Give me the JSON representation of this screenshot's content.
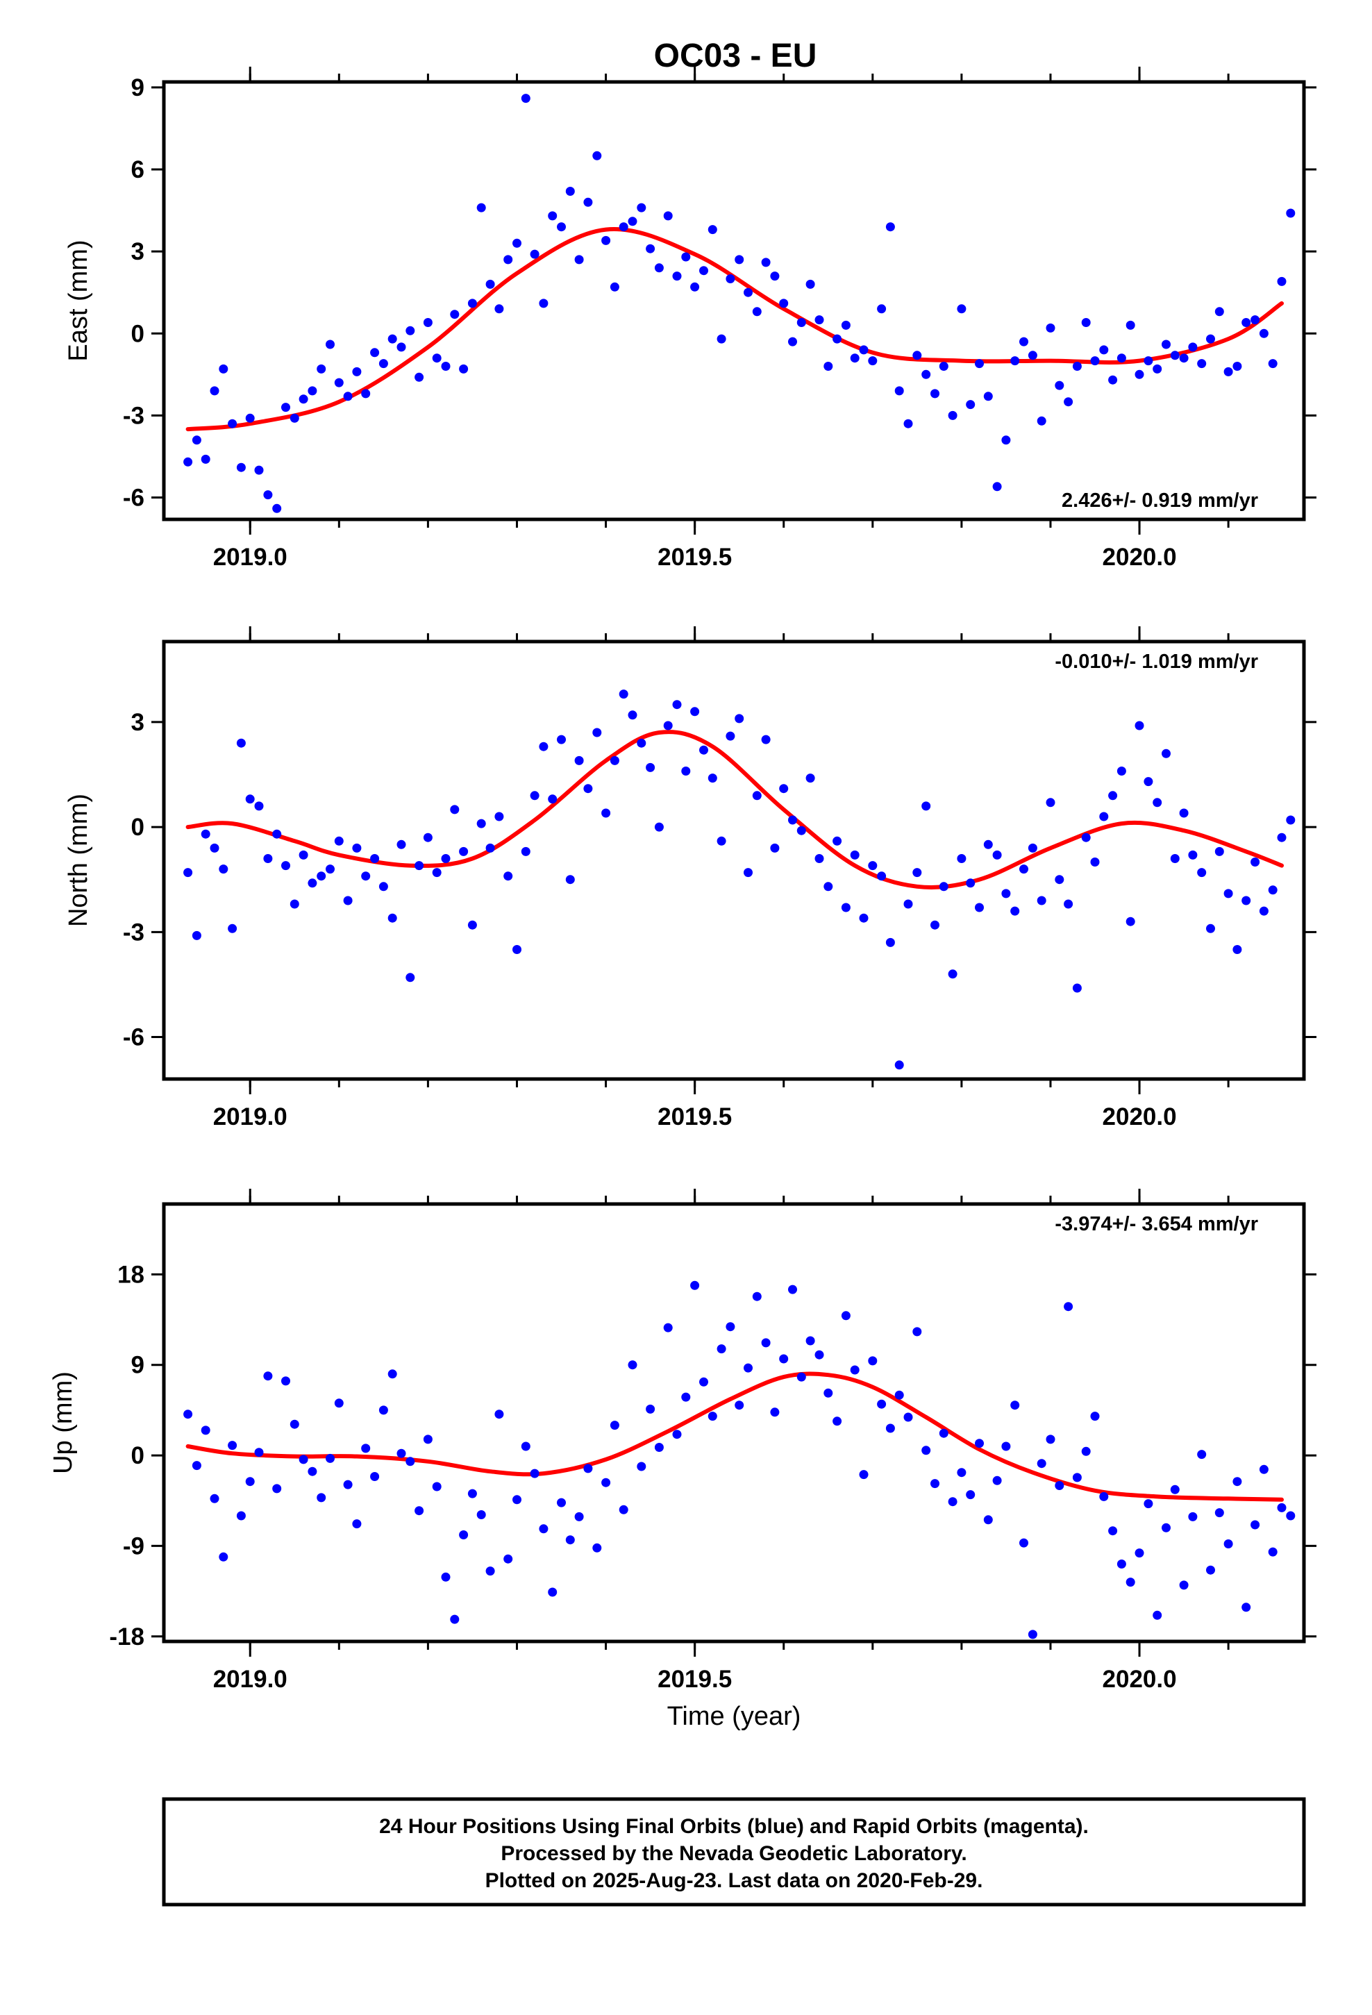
{
  "title": "OC03 - EU",
  "xlabel": "Time (year)",
  "footer": {
    "line1": "24 Hour Positions Using Final Orbits (blue) and Rapid Orbits (magenta).",
    "line2": "Processed by the Nevada Geodetic Laboratory.",
    "line3": "Plotted on 2025-Aug-23. Last data on 2020-Feb-29."
  },
  "colors": {
    "final_orbits": "#0000ff",
    "fit": "#ff0000",
    "frame": "#000000"
  },
  "chart_data": [
    {
      "type": "scatter",
      "component": "East",
      "ylabel": "East (mm)",
      "rate": "2.426+/- 0.919 mm/yr",
      "xlim": [
        2018.903,
        2020.185
      ],
      "ylim": [
        -6.8,
        9.2
      ],
      "xticks": [
        2019.0,
        2019.5,
        2020.0
      ],
      "xtick_labels": [
        "2019.0",
        "2019.5",
        "2020.0"
      ],
      "yticks": [
        -6,
        -3,
        0,
        3,
        6,
        9
      ],
      "ytick_labels": [
        "-6",
        "-3",
        "0",
        "3",
        "6",
        "9"
      ],
      "fit": {
        "x": [
          2018.93,
          2019.0,
          2019.1,
          2019.2,
          2019.3,
          2019.4,
          2019.5,
          2019.6,
          2019.7,
          2019.8,
          2019.9,
          2020.0,
          2020.1,
          2020.16
        ],
        "y": [
          -3.5,
          -3.3,
          -2.5,
          -0.5,
          2.2,
          3.8,
          2.9,
          0.9,
          -0.7,
          -1.0,
          -1.0,
          -1.0,
          -0.2,
          1.1
        ]
      },
      "points": {
        "x": [
          2018.93,
          2018.94,
          2018.95,
          2018.96,
          2018.97,
          2018.98,
          2018.99,
          2019.0,
          2019.01,
          2019.02,
          2019.03,
          2019.04,
          2019.05,
          2019.06,
          2019.07,
          2019.08,
          2019.09,
          2019.1,
          2019.11,
          2019.12,
          2019.13,
          2019.14,
          2019.15,
          2019.16,
          2019.17,
          2019.18,
          2019.19,
          2019.2,
          2019.21,
          2019.22,
          2019.23,
          2019.24,
          2019.25,
          2019.26,
          2019.27,
          2019.28,
          2019.29,
          2019.3,
          2019.31,
          2019.32,
          2019.33,
          2019.34,
          2019.35,
          2019.36,
          2019.37,
          2019.38,
          2019.39,
          2019.4,
          2019.41,
          2019.42,
          2019.43,
          2019.44,
          2019.45,
          2019.46,
          2019.47,
          2019.48,
          2019.49,
          2019.5,
          2019.51,
          2019.52,
          2019.53,
          2019.54,
          2019.55,
          2019.56,
          2019.57,
          2019.58,
          2019.59,
          2019.6,
          2019.61,
          2019.62,
          2019.63,
          2019.64,
          2019.65,
          2019.66,
          2019.67,
          2019.68,
          2019.69,
          2019.7,
          2019.71,
          2019.72,
          2019.73,
          2019.74,
          2019.75,
          2019.76,
          2019.77,
          2019.78,
          2019.79,
          2019.8,
          2019.81,
          2019.82,
          2019.83,
          2019.84,
          2019.85,
          2019.86,
          2019.87,
          2019.88,
          2019.89,
          2019.9,
          2019.91,
          2019.92,
          2019.93,
          2019.94,
          2019.95,
          2019.96,
          2019.97,
          2019.98,
          2019.99,
          2020.0,
          2020.01,
          2020.02,
          2020.03,
          2020.04,
          2020.05,
          2020.06,
          2020.07,
          2020.08,
          2020.09,
          2020.1,
          2020.11,
          2020.12,
          2020.13,
          2020.14,
          2020.15,
          2020.16,
          2020.17
        ],
        "y": [
          -4.7,
          -3.9,
          -4.6,
          -2.1,
          -1.3,
          -3.3,
          -4.9,
          -3.1,
          -5.0,
          -5.9,
          -6.4,
          -2.7,
          -3.1,
          -2.4,
          -2.1,
          -1.3,
          -0.4,
          -1.8,
          -2.3,
          -1.4,
          -2.2,
          -0.7,
          -1.1,
          -0.2,
          -0.5,
          0.1,
          -1.6,
          0.4,
          -0.9,
          -1.2,
          0.7,
          -1.3,
          1.1,
          4.6,
          1.8,
          0.9,
          2.7,
          3.3,
          8.6,
          2.9,
          1.1,
          4.3,
          3.9,
          5.2,
          2.7,
          4.8,
          6.5,
          3.4,
          1.7,
          3.9,
          4.1,
          4.6,
          3.1,
          2.4,
          4.3,
          2.1,
          2.8,
          1.7,
          2.3,
          3.8,
          -0.2,
          2.0,
          2.7,
          1.5,
          0.8,
          2.6,
          2.1,
          1.1,
          -0.3,
          0.4,
          1.8,
          0.5,
          -1.2,
          -0.2,
          0.3,
          -0.9,
          -0.6,
          -1.0,
          0.9,
          3.9,
          -2.1,
          -3.3,
          -0.8,
          -1.5,
          -2.2,
          -1.2,
          -3.0,
          0.9,
          -2.6,
          -1.1,
          -2.3,
          -5.6,
          -3.9,
          -1.0,
          -0.3,
          -0.8,
          -3.2,
          0.2,
          -1.9,
          -2.5,
          -1.2,
          0.4,
          -1.0,
          -0.6,
          -1.7,
          -0.9,
          0.3,
          -1.5,
          -1.0,
          -1.3,
          -0.4,
          -0.8,
          -0.9,
          -0.5,
          -1.1,
          -0.2,
          0.8,
          -1.4,
          -1.2,
          0.4,
          0.5,
          0.0,
          -1.1,
          1.9,
          4.4
        ]
      }
    },
    {
      "type": "scatter",
      "component": "North",
      "ylabel": "North (mm)",
      "rate": "-0.010+/- 1.019 mm/yr",
      "xlim": [
        2018.903,
        2020.185
      ],
      "ylim": [
        -7.2,
        5.3
      ],
      "xticks": [
        2019.0,
        2019.5,
        2020.0
      ],
      "xtick_labels": [
        "2019.0",
        "2019.5",
        "2020.0"
      ],
      "yticks": [
        -6,
        -3,
        0,
        3
      ],
      "ytick_labels": [
        "-6",
        "-3",
        "0",
        "3"
      ],
      "fit": {
        "x": [
          2018.93,
          2018.98,
          2019.05,
          2019.1,
          2019.18,
          2019.25,
          2019.32,
          2019.4,
          2019.46,
          2019.52,
          2019.6,
          2019.68,
          2019.75,
          2019.82,
          2019.9,
          2019.98,
          2020.05,
          2020.12,
          2020.16
        ],
        "y": [
          0.0,
          0.1,
          -0.4,
          -0.8,
          -1.1,
          -0.9,
          0.2,
          1.9,
          2.7,
          2.3,
          0.5,
          -1.1,
          -1.7,
          -1.5,
          -0.6,
          0.1,
          -0.1,
          -0.7,
          -1.1
        ]
      },
      "points": {
        "x": [
          2018.93,
          2018.94,
          2018.95,
          2018.96,
          2018.97,
          2018.98,
          2018.99,
          2019.0,
          2019.01,
          2019.02,
          2019.03,
          2019.04,
          2019.05,
          2019.06,
          2019.07,
          2019.08,
          2019.09,
          2019.1,
          2019.11,
          2019.12,
          2019.13,
          2019.14,
          2019.15,
          2019.16,
          2019.17,
          2019.18,
          2019.19,
          2019.2,
          2019.21,
          2019.22,
          2019.23,
          2019.24,
          2019.25,
          2019.26,
          2019.27,
          2019.28,
          2019.29,
          2019.3,
          2019.31,
          2019.32,
          2019.33,
          2019.34,
          2019.35,
          2019.36,
          2019.37,
          2019.38,
          2019.39,
          2019.4,
          2019.41,
          2019.42,
          2019.43,
          2019.44,
          2019.45,
          2019.46,
          2019.47,
          2019.48,
          2019.49,
          2019.5,
          2019.51,
          2019.52,
          2019.53,
          2019.54,
          2019.55,
          2019.56,
          2019.57,
          2019.58,
          2019.59,
          2019.6,
          2019.61,
          2019.62,
          2019.63,
          2019.64,
          2019.65,
          2019.66,
          2019.67,
          2019.68,
          2019.69,
          2019.7,
          2019.71,
          2019.72,
          2019.73,
          2019.74,
          2019.75,
          2019.76,
          2019.77,
          2019.78,
          2019.79,
          2019.8,
          2019.81,
          2019.82,
          2019.83,
          2019.84,
          2019.85,
          2019.86,
          2019.87,
          2019.88,
          2019.89,
          2019.9,
          2019.91,
          2019.92,
          2019.93,
          2019.94,
          2019.95,
          2019.96,
          2019.97,
          2019.98,
          2019.99,
          2020.0,
          2020.01,
          2020.02,
          2020.03,
          2020.04,
          2020.05,
          2020.06,
          2020.07,
          2020.08,
          2020.09,
          2020.1,
          2020.11,
          2020.12,
          2020.13,
          2020.14,
          2020.15,
          2020.16,
          2020.17
        ],
        "y": [
          -1.3,
          -3.1,
          -0.2,
          -0.6,
          -1.2,
          -2.9,
          2.4,
          0.8,
          0.6,
          -0.9,
          -0.2,
          -1.1,
          -2.2,
          -0.8,
          -1.6,
          -1.4,
          -1.2,
          -0.4,
          -2.1,
          -0.6,
          -1.4,
          -0.9,
          -1.7,
          -2.6,
          -0.5,
          -4.3,
          -1.1,
          -0.3,
          -1.3,
          -0.9,
          0.5,
          -0.7,
          -2.8,
          0.1,
          -0.6,
          0.3,
          -1.4,
          -3.5,
          -0.7,
          0.9,
          2.3,
          0.8,
          2.5,
          -1.5,
          1.9,
          1.1,
          2.7,
          0.4,
          1.9,
          3.8,
          3.2,
          2.4,
          1.7,
          0.0,
          2.9,
          3.5,
          1.6,
          3.3,
          2.2,
          1.4,
          -0.4,
          2.6,
          3.1,
          -1.3,
          0.9,
          2.5,
          -0.6,
          1.1,
          0.2,
          -0.1,
          1.4,
          -0.9,
          -1.7,
          -0.4,
          -2.3,
          -0.8,
          -2.6,
          -1.1,
          -1.4,
          -3.3,
          -6.8,
          -2.2,
          -1.3,
          0.6,
          -2.8,
          -1.7,
          -4.2,
          -0.9,
          -1.6,
          -2.3,
          -0.5,
          -0.8,
          -1.9,
          -2.4,
          -1.2,
          -0.6,
          -2.1,
          0.7,
          -1.5,
          -2.2,
          -4.6,
          -0.3,
          -1.0,
          0.3,
          0.9,
          1.6,
          -2.7,
          2.9,
          1.3,
          0.7,
          2.1,
          -0.9,
          0.4,
          -0.8,
          -1.3,
          -2.9,
          -0.7,
          -1.9,
          -3.5,
          -2.1,
          -1.0,
          -2.4,
          -1.8,
          -0.3,
          0.2
        ]
      }
    },
    {
      "type": "scatter",
      "component": "Up",
      "ylabel": "Up (mm)",
      "rate": "-3.974+/- 3.654 mm/yr",
      "xlim": [
        2018.903,
        2020.185
      ],
      "ylim": [
        -18.5,
        25.0
      ],
      "xticks": [
        2019.0,
        2019.5,
        2020.0
      ],
      "xtick_labels": [
        "2019.0",
        "2019.5",
        "2020.0"
      ],
      "yticks": [
        -18,
        -9,
        0,
        9,
        18
      ],
      "ytick_labels": [
        "-18",
        "-9",
        "0",
        "9",
        "18"
      ],
      "fit": {
        "x": [
          2018.93,
          2018.98,
          2019.05,
          2019.12,
          2019.2,
          2019.27,
          2019.33,
          2019.4,
          2019.47,
          2019.54,
          2019.6,
          2019.65,
          2019.7,
          2019.76,
          2019.82,
          2019.88,
          2019.95,
          2020.02,
          2020.1,
          2020.16
        ],
        "y": [
          0.9,
          0.2,
          -0.1,
          -0.1,
          -0.6,
          -1.6,
          -1.8,
          -0.4,
          2.4,
          5.6,
          7.8,
          8.0,
          6.8,
          3.8,
          0.6,
          -1.7,
          -3.5,
          -4.1,
          -4.3,
          -4.4
        ]
      },
      "points": {
        "x": [
          2018.93,
          2018.94,
          2018.95,
          2018.96,
          2018.97,
          2018.98,
          2018.99,
          2019.0,
          2019.01,
          2019.02,
          2019.03,
          2019.04,
          2019.05,
          2019.06,
          2019.07,
          2019.08,
          2019.09,
          2019.1,
          2019.11,
          2019.12,
          2019.13,
          2019.14,
          2019.15,
          2019.16,
          2019.17,
          2019.18,
          2019.19,
          2019.2,
          2019.21,
          2019.22,
          2019.23,
          2019.24,
          2019.25,
          2019.26,
          2019.27,
          2019.28,
          2019.29,
          2019.3,
          2019.31,
          2019.32,
          2019.33,
          2019.34,
          2019.35,
          2019.36,
          2019.37,
          2019.38,
          2019.39,
          2019.4,
          2019.41,
          2019.42,
          2019.43,
          2019.44,
          2019.45,
          2019.46,
          2019.47,
          2019.48,
          2019.49,
          2019.5,
          2019.51,
          2019.52,
          2019.53,
          2019.54,
          2019.55,
          2019.56,
          2019.57,
          2019.58,
          2019.59,
          2019.6,
          2019.61,
          2019.62,
          2019.63,
          2019.64,
          2019.65,
          2019.66,
          2019.67,
          2019.68,
          2019.69,
          2019.7,
          2019.71,
          2019.72,
          2019.73,
          2019.74,
          2019.75,
          2019.76,
          2019.77,
          2019.78,
          2019.79,
          2019.8,
          2019.81,
          2019.82,
          2019.83,
          2019.84,
          2019.85,
          2019.86,
          2019.87,
          2019.88,
          2019.89,
          2019.9,
          2019.91,
          2019.92,
          2019.93,
          2019.94,
          2019.95,
          2019.96,
          2019.97,
          2019.98,
          2019.99,
          2020.0,
          2020.01,
          2020.02,
          2020.03,
          2020.04,
          2020.05,
          2020.06,
          2020.07,
          2020.08,
          2020.09,
          2020.1,
          2020.11,
          2020.12,
          2020.13,
          2020.14,
          2020.15,
          2020.16,
          2020.17
        ],
        "y": [
          4.1,
          -1.0,
          2.5,
          -4.3,
          -10.1,
          1.0,
          -6.0,
          -2.6,
          0.3,
          7.9,
          -3.3,
          7.4,
          3.1,
          -0.4,
          -1.6,
          -4.2,
          -0.3,
          5.2,
          -2.9,
          -6.8,
          0.7,
          -2.1,
          4.5,
          8.1,
          0.2,
          -0.6,
          -5.5,
          1.6,
          -3.1,
          -12.1,
          -16.3,
          -7.9,
          -3.8,
          -5.9,
          -11.5,
          4.1,
          -10.3,
          -4.4,
          0.9,
          -1.8,
          -7.3,
          -13.6,
          -4.7,
          -8.4,
          -6.1,
          -1.3,
          -9.2,
          -2.7,
          3.0,
          -5.4,
          9.0,
          -1.1,
          4.6,
          0.8,
          12.7,
          2.1,
          5.8,
          16.9,
          7.3,
          3.9,
          10.6,
          12.8,
          5.0,
          8.7,
          15.8,
          11.2,
          4.3,
          9.6,
          16.5,
          7.8,
          11.4,
          10.0,
          6.2,
          3.4,
          13.9,
          8.5,
          -1.9,
          9.4,
          5.1,
          2.7,
          6.0,
          3.8,
          12.3,
          0.5,
          -2.8,
          2.2,
          -4.6,
          -1.7,
          -3.9,
          1.2,
          -6.4,
          -2.5,
          0.9,
          5.0,
          -8.7,
          -17.8,
          -0.8,
          1.6,
          -3.0,
          14.8,
          -2.2,
          0.4,
          3.9,
          -4.1,
          -7.5,
          -10.8,
          -12.6,
          -9.7,
          -4.8,
          -15.9,
          -7.2,
          -3.4,
          -12.9,
          -6.1,
          0.1,
          -11.4,
          -5.7,
          -8.8,
          -2.6,
          -15.1,
          -6.9,
          -1.4,
          -9.6,
          -5.2,
          -6.0
        ]
      }
    }
  ]
}
